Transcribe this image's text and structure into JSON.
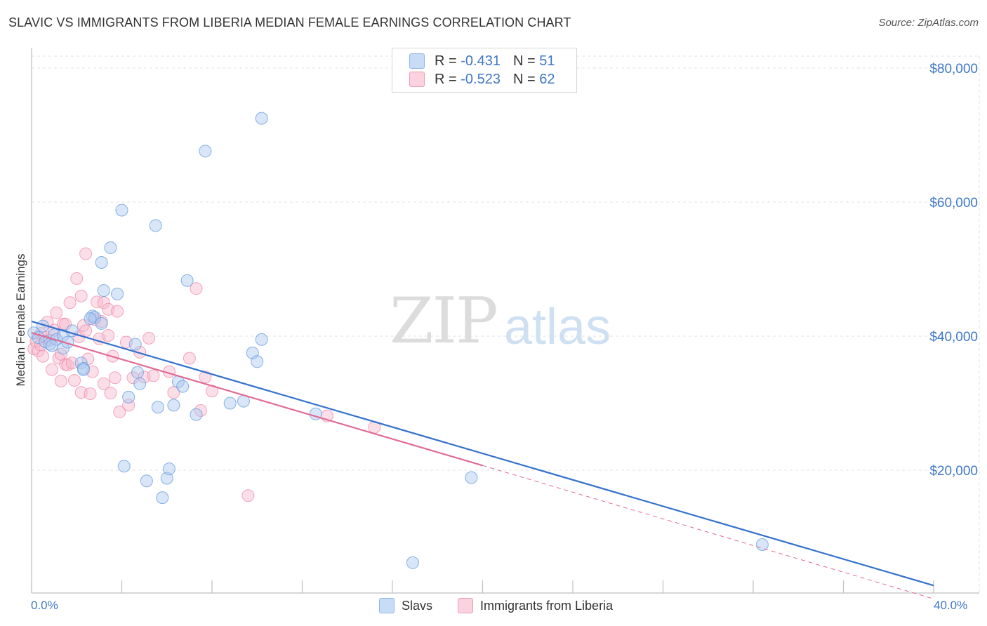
{
  "title": "SLAVIC VS IMMIGRANTS FROM LIBERIA MEDIAN FEMALE EARNINGS CORRELATION CHART",
  "source": "Source: ZipAtlas.com",
  "watermark": {
    "zip": "ZIP",
    "atlas": "atlas"
  },
  "legend": {
    "rows": [
      {
        "r_label": "R =",
        "r_value": "-0.431",
        "n_label": "N =",
        "n_value": "51",
        "color": "#aac8f0"
      },
      {
        "r_label": "R =",
        "r_value": "-0.523",
        "n_label": "N =",
        "n_value": "62",
        "color": "#f7b8cc"
      }
    ]
  },
  "bottom_legend": [
    {
      "label": "Slavs",
      "color": "#aac8f0"
    },
    {
      "label": "Immigrants from Liberia",
      "color": "#f7b8cc"
    }
  ],
  "chart_data": {
    "type": "scatter",
    "title": "SLAVIC VS IMMIGRANTS FROM LIBERIA MEDIAN FEMALE EARNINGS CORRELATION CHART",
    "xlabel": "",
    "ylabel": "Median Female Earnings",
    "xlim": [
      0,
      40
    ],
    "ylim": [
      0,
      82000
    ],
    "x_tick_labels": [
      "0.0%",
      "40.0%"
    ],
    "y_ticks": [
      20000,
      40000,
      60000,
      80000
    ],
    "y_tick_labels": [
      "$20,000",
      "$40,000",
      "$60,000",
      "$80,000"
    ],
    "series": [
      {
        "name": "Slavs",
        "color": "#6a9fe0",
        "fill": "#aac8f0",
        "line_color": "#3472cc",
        "trend": {
          "x0": 0,
          "y0": 42200,
          "x1": 40,
          "y1": 2800
        },
        "points": [
          [
            0.1,
            40500
          ],
          [
            0.3,
            39800
          ],
          [
            0.5,
            41500
          ],
          [
            0.6,
            39200
          ],
          [
            0.8,
            38800
          ],
          [
            1.0,
            40200
          ],
          [
            1.1,
            39500
          ],
          [
            1.4,
            40100
          ],
          [
            1.4,
            38200
          ],
          [
            1.8,
            40800
          ],
          [
            2.2,
            36000
          ],
          [
            2.3,
            35200
          ],
          [
            2.7,
            43000
          ],
          [
            2.8,
            42800
          ],
          [
            3.1,
            41900
          ],
          [
            3.1,
            51000
          ],
          [
            3.2,
            46800
          ],
          [
            3.5,
            53200
          ],
          [
            3.8,
            46300
          ],
          [
            4.0,
            58800
          ],
          [
            4.1,
            20600
          ],
          [
            4.3,
            30900
          ],
          [
            4.6,
            38800
          ],
          [
            4.7,
            34600
          ],
          [
            4.8,
            32900
          ],
          [
            5.1,
            18400
          ],
          [
            5.5,
            56500
          ],
          [
            5.6,
            29400
          ],
          [
            5.8,
            15900
          ],
          [
            6.0,
            18800
          ],
          [
            6.1,
            20200
          ],
          [
            6.3,
            29700
          ],
          [
            6.5,
            33200
          ],
          [
            6.7,
            32500
          ],
          [
            6.9,
            48300
          ],
          [
            7.3,
            28300
          ],
          [
            7.7,
            67600
          ],
          [
            8.8,
            30000
          ],
          [
            9.4,
            30300
          ],
          [
            9.8,
            37500
          ],
          [
            10.0,
            36200
          ],
          [
            10.2,
            39500
          ],
          [
            10.2,
            72500
          ],
          [
            12.6,
            28400
          ],
          [
            16.9,
            6200
          ],
          [
            19.5,
            18900
          ],
          [
            32.4,
            8900
          ],
          [
            2.3,
            35000
          ],
          [
            1.6,
            39100
          ],
          [
            0.9,
            38600
          ],
          [
            2.6,
            42600
          ]
        ]
      },
      {
        "name": "Immigrants from Liberia",
        "color": "#f08aa8",
        "fill": "#f7b8cc",
        "line_color": "#e26a92",
        "trend": {
          "x0": 0,
          "y0": 40500,
          "x1": 20,
          "y1": 20700
        },
        "trend_dashed": {
          "x0": 20,
          "y0": 20700,
          "x1": 40,
          "y1": 800
        },
        "points": [
          [
            0.1,
            38100
          ],
          [
            0.2,
            39200
          ],
          [
            0.3,
            37800
          ],
          [
            0.4,
            38700
          ],
          [
            0.5,
            37000
          ],
          [
            0.6,
            39800
          ],
          [
            0.7,
            42100
          ],
          [
            0.8,
            39400
          ],
          [
            0.9,
            35000
          ],
          [
            1.0,
            40900
          ],
          [
            1.1,
            43500
          ],
          [
            1.2,
            36700
          ],
          [
            1.3,
            33300
          ],
          [
            1.4,
            41800
          ],
          [
            1.5,
            35800
          ],
          [
            1.5,
            41800
          ],
          [
            1.6,
            35700
          ],
          [
            1.7,
            45000
          ],
          [
            1.8,
            36000
          ],
          [
            1.9,
            33400
          ],
          [
            2.0,
            48600
          ],
          [
            2.1,
            39900
          ],
          [
            2.2,
            46000
          ],
          [
            2.2,
            31600
          ],
          [
            2.3,
            41600
          ],
          [
            2.4,
            52300
          ],
          [
            2.5,
            36600
          ],
          [
            2.6,
            31400
          ],
          [
            2.7,
            34700
          ],
          [
            2.8,
            42500
          ],
          [
            2.9,
            45100
          ],
          [
            3.0,
            39600
          ],
          [
            3.1,
            42200
          ],
          [
            3.2,
            32900
          ],
          [
            3.2,
            45000
          ],
          [
            3.4,
            44000
          ],
          [
            3.4,
            40100
          ],
          [
            3.5,
            31500
          ],
          [
            3.7,
            33800
          ],
          [
            3.8,
            43700
          ],
          [
            3.9,
            28700
          ],
          [
            4.2,
            39100
          ],
          [
            4.3,
            29700
          ],
          [
            4.5,
            33800
          ],
          [
            4.8,
            37600
          ],
          [
            5.0,
            33900
          ],
          [
            5.2,
            39700
          ],
          [
            5.4,
            34100
          ],
          [
            6.1,
            34700
          ],
          [
            6.3,
            31600
          ],
          [
            7.0,
            36700
          ],
          [
            7.3,
            47100
          ],
          [
            7.5,
            28900
          ],
          [
            7.7,
            33900
          ],
          [
            8.0,
            31800
          ],
          [
            9.6,
            16200
          ],
          [
            13.1,
            28100
          ],
          [
            15.2,
            26400
          ],
          [
            1.3,
            37300
          ],
          [
            2.4,
            40800
          ],
          [
            0.4,
            40400
          ],
          [
            3.6,
            37000
          ]
        ]
      }
    ]
  }
}
